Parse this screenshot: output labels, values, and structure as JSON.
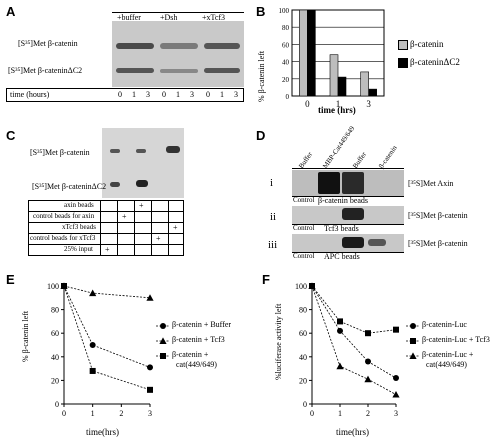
{
  "panels": {
    "A": {
      "letter": "A",
      "row1": "[S³⁵]Met β-catenin",
      "row2": "[S³⁵]Met β-cateninΔC2",
      "conditions": [
        "+buffer",
        "+Dsh",
        "+xTcf3"
      ],
      "time_label": "time (hours)",
      "times": [
        "0",
        "1",
        "3",
        "0",
        "1",
        "3",
        "0",
        "1",
        "3"
      ]
    },
    "B": {
      "letter": "B",
      "legend": [
        "β-catenin",
        "β-cateninΔC2"
      ]
    },
    "C": {
      "letter": "C",
      "row1": "[S³⁵]Met β-catenin",
      "row2": "[S³⁵]Met β-cateninΔC2",
      "table_rows": [
        "axin beads",
        "control beads for axin",
        "xTcf3 beads",
        "control beads for xTcf3",
        "25% input"
      ],
      "marker": "+"
    },
    "D": {
      "letter": "D",
      "columns": [
        "Buffer",
        "MBP-Cat449/649",
        "Buffer",
        "β-catenin"
      ],
      "rows": [
        {
          "numeral": "i",
          "label": "[³⁵S]Met Axin",
          "control": "Control",
          "beads": "β-catenin beads"
        },
        {
          "numeral": "ii",
          "label": "[³⁵S]Met β-catenin",
          "control": "Control",
          "beads": "Tcf3 beads"
        },
        {
          "numeral": "iii",
          "label": "[³⁵S]Met β-catenin",
          "control": "Control",
          "beads": "APC beads"
        }
      ]
    },
    "E": {
      "letter": "E",
      "legend": [
        "β-catenin + Buffer",
        "β-catenin + Tcf3",
        "β-catenin +",
        "cat(449/649)"
      ]
    },
    "F": {
      "letter": "F",
      "legend": [
        "β-catenin-Luc",
        "β-catenin-Luc + Tcf3",
        "β-catenin-Luc +",
        "cat(449/649)"
      ]
    }
  },
  "chart_data": [
    {
      "id": "B",
      "type": "bar",
      "categories": [
        "0",
        "1",
        "3"
      ],
      "series": [
        {
          "name": "β-catenin",
          "values": [
            100,
            48,
            28
          ],
          "color": "#bdbdbd"
        },
        {
          "name": "β-cateninΔC2",
          "values": [
            100,
            22,
            8
          ],
          "color": "#000000"
        }
      ],
      "ylabel": "% β-catenin left",
      "xlabel": "time (hrs)",
      "ylim": [
        0,
        100
      ],
      "yticks": [
        0,
        20,
        40,
        60,
        80,
        100
      ],
      "grid": true,
      "legend": "right"
    },
    {
      "id": "E",
      "type": "line",
      "x": [
        0,
        1,
        3
      ],
      "xticks": [
        0,
        1,
        2,
        3
      ],
      "series": [
        {
          "name": "β-catenin + Buffer",
          "marker": "circle",
          "values": [
            100,
            50,
            31
          ]
        },
        {
          "name": "β-catenin + Tcf3",
          "marker": "triangle",
          "values": [
            100,
            94,
            90
          ]
        },
        {
          "name": "β-catenin + cat(449/649)",
          "marker": "square",
          "values": [
            100,
            28,
            12
          ]
        }
      ],
      "ylabel": "% β-catenin left",
      "xlabel": "time(hrs)",
      "ylim": [
        0,
        100
      ],
      "yticks": [
        0,
        20,
        40,
        60,
        80,
        100
      ],
      "xlim": [
        0,
        3
      ],
      "legend": "right"
    },
    {
      "id": "F",
      "type": "line",
      "x": [
        0,
        1,
        2,
        3
      ],
      "xticks": [
        0,
        1,
        2,
        3
      ],
      "series": [
        {
          "name": "β-catenin-Luc",
          "marker": "circle",
          "values": [
            100,
            62,
            36,
            22
          ]
        },
        {
          "name": "β-catenin-Luc + Tcf3",
          "marker": "square",
          "values": [
            100,
            70,
            60,
            63
          ]
        },
        {
          "name": "β-catenin-Luc + cat(449/649)",
          "marker": "triangle",
          "values": [
            100,
            32,
            21,
            8
          ]
        }
      ],
      "ylabel": "%luciferase activity left",
      "xlabel": "time(hrs)",
      "ylim": [
        0,
        100
      ],
      "yticks": [
        0,
        20,
        40,
        60,
        80,
        100
      ],
      "xlim": [
        0,
        3
      ],
      "legend": "right"
    }
  ]
}
